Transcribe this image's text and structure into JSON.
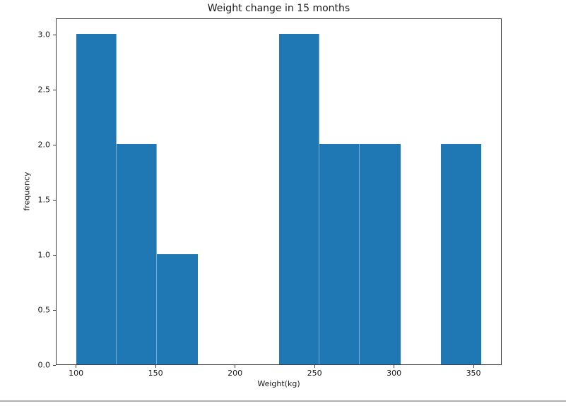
{
  "window": {
    "background": "#ffffff",
    "bottom_divider_color": "#b0b0b0"
  },
  "chart_data": {
    "type": "bar",
    "subtype": "histogram",
    "title": "Weight change in 15 months",
    "xlabel": "Weight(kg)",
    "ylabel": "frequency",
    "bar_color": "#1f77b4",
    "bin_edges": [
      100,
      125.5,
      151,
      176.5,
      202,
      227.5,
      253,
      278.5,
      304,
      329.5,
      355
    ],
    "counts": [
      3,
      2,
      1,
      0,
      0,
      3,
      2,
      2,
      0,
      2
    ],
    "x_ticks": [
      {
        "value": 100,
        "label": "100"
      },
      {
        "value": 150,
        "label": "150"
      },
      {
        "value": 200,
        "label": "200"
      },
      {
        "value": 250,
        "label": "250"
      },
      {
        "value": 300,
        "label": "300"
      },
      {
        "value": 350,
        "label": "350"
      }
    ],
    "y_ticks": [
      {
        "value": 0,
        "label": "0.0"
      },
      {
        "value": 0.5,
        "label": "0.5"
      },
      {
        "value": 1,
        "label": "1.0"
      },
      {
        "value": 1.5,
        "label": "1.5"
      },
      {
        "value": 2,
        "label": "2.0"
      },
      {
        "value": 2.5,
        "label": "2.5"
      },
      {
        "value": 3,
        "label": "3.0"
      }
    ],
    "xlim": [
      87.25,
      367.75
    ],
    "ylim": [
      0,
      3.15
    ],
    "grid": false,
    "legend": null
  }
}
